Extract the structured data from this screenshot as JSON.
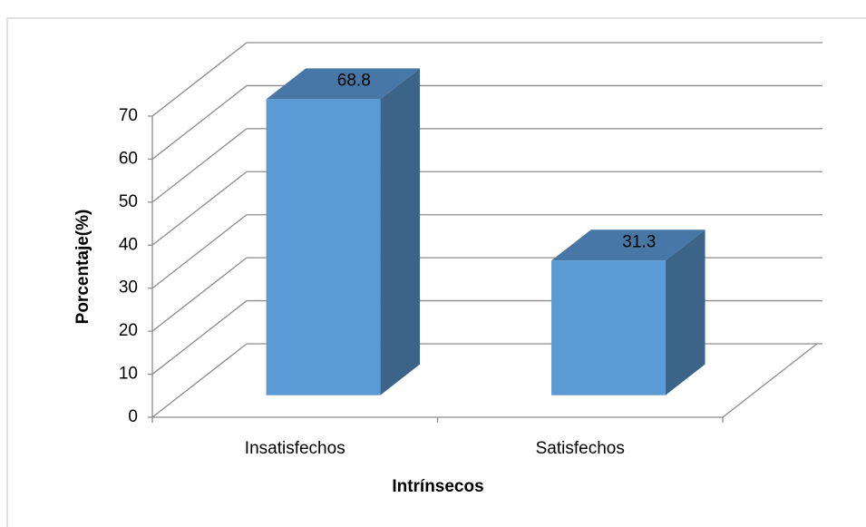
{
  "chart_data": {
    "type": "bar3d",
    "x_label": "Intrínsecos",
    "y_label": "Porcentaje(%)",
    "categories": [
      "Insatisfechos",
      "Satisfechos"
    ],
    "values": [
      68.8,
      31.3
    ],
    "color": "#5b9bd5",
    "ylim": [
      0,
      70
    ],
    "yticks": [
      0,
      10,
      20,
      30,
      40,
      50,
      60,
      70
    ],
    "grid": true
  }
}
